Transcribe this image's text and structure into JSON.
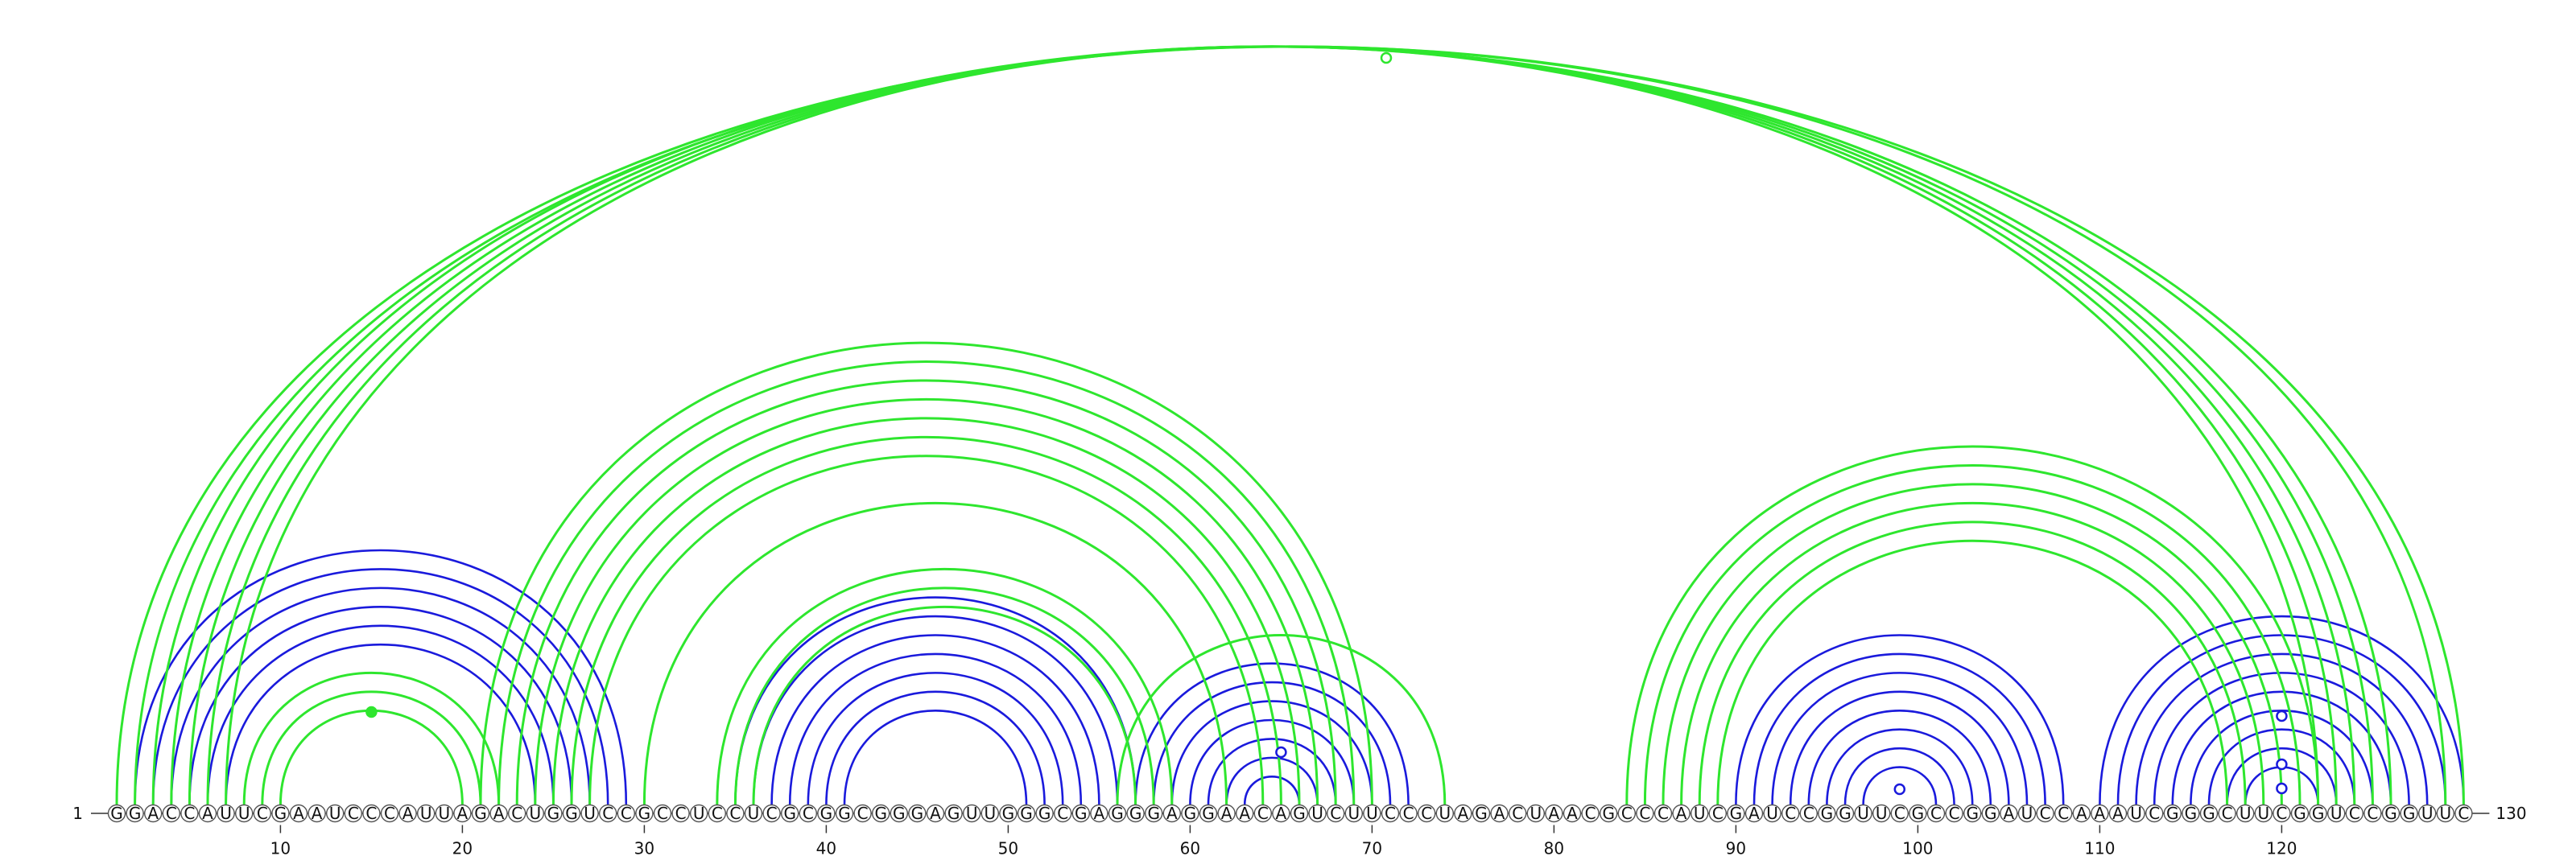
{
  "sequence": "GGACCAUUCGAAUCCCAUUAGACUGGUCCGCCUCCUCGCGGCGGGAGUUGGGCGAGGGAGGAACAGUCUUCCCUAGACUAACGCCCAUCGAUCCGGUUCGCCGGAUCCAAAUCGGGCUUCGGUCCGGUUC",
  "start_label": "1",
  "end_label": "130",
  "ticks": [
    "10",
    "20",
    "30",
    "40",
    "50",
    "60",
    "70",
    "80",
    "90",
    "100",
    "110",
    "120"
  ],
  "colors": {
    "pair_blue": "#1a1adc",
    "pair_green": "#2ee62e",
    "line": "#333333"
  },
  "blue_arcs": [
    [
      2,
      29
    ],
    [
      3,
      28
    ],
    [
      4,
      27
    ],
    [
      5,
      26
    ],
    [
      6,
      25
    ],
    [
      7,
      24
    ],
    [
      35,
      57
    ],
    [
      36,
      56
    ],
    [
      37,
      55
    ],
    [
      38,
      54
    ],
    [
      39,
      53
    ],
    [
      40,
      52
    ],
    [
      41,
      51
    ],
    [
      57,
      72
    ],
    [
      58,
      71
    ],
    [
      59,
      70
    ],
    [
      60,
      69
    ],
    [
      61,
      68
    ],
    [
      62,
      67
    ],
    [
      63,
      66
    ],
    [
      90,
      108
    ],
    [
      91,
      107
    ],
    [
      92,
      106
    ],
    [
      93,
      105
    ],
    [
      94,
      104
    ],
    [
      95,
      103
    ],
    [
      96,
      102
    ],
    [
      97,
      101
    ],
    [
      110,
      130
    ],
    [
      111,
      129
    ],
    [
      112,
      128
    ],
    [
      113,
      127
    ],
    [
      114,
      126
    ],
    [
      115,
      125
    ],
    [
      116,
      124
    ],
    [
      117,
      123
    ],
    [
      118,
      122
    ]
  ],
  "green_arcs": [
    [
      1,
      130
    ],
    [
      2,
      129
    ],
    [
      3,
      126
    ],
    [
      4,
      125
    ],
    [
      5,
      124
    ],
    [
      6,
      123
    ],
    [
      7,
      122
    ],
    [
      8,
      22
    ],
    [
      9,
      21
    ],
    [
      10,
      20
    ],
    [
      21,
      70
    ],
    [
      22,
      69
    ],
    [
      23,
      68
    ],
    [
      24,
      67
    ],
    [
      25,
      66
    ],
    [
      26,
      65
    ],
    [
      27,
      64
    ],
    [
      30,
      62
    ],
    [
      34,
      59
    ],
    [
      35,
      58
    ],
    [
      36,
      57
    ],
    [
      56,
      74
    ],
    [
      84,
      122
    ],
    [
      85,
      121
    ],
    [
      86,
      120
    ],
    [
      87,
      119
    ],
    [
      88,
      118
    ],
    [
      89,
      117
    ]
  ],
  "blue_circles": [
    65,
    99,
    120,
    120,
    120
  ],
  "green_circles": [
    66,
    15
  ]
}
